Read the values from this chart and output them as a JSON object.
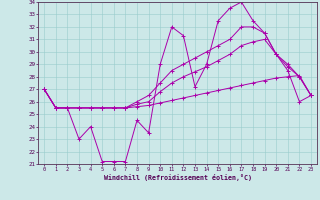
{
  "xlabel": "Windchill (Refroidissement éolien,°C)",
  "xlim": [
    -0.5,
    23.5
  ],
  "ylim": [
    21,
    34
  ],
  "yticks": [
    21,
    22,
    23,
    24,
    25,
    26,
    27,
    28,
    29,
    30,
    31,
    32,
    33,
    34
  ],
  "xticks": [
    0,
    1,
    2,
    3,
    4,
    5,
    6,
    7,
    8,
    9,
    10,
    11,
    12,
    13,
    14,
    15,
    16,
    17,
    18,
    19,
    20,
    21,
    22,
    23
  ],
  "background_color": "#cce8e8",
  "line_color": "#aa00aa",
  "grid_color": "#99cccc",
  "lines": [
    {
      "x": [
        0,
        1,
        2,
        3,
        4,
        5,
        6,
        7,
        8,
        9,
        10,
        11,
        12,
        13,
        14,
        15,
        16,
        17,
        18,
        19,
        20,
        21,
        22,
        23
      ],
      "y": [
        27.0,
        25.5,
        25.5,
        23.0,
        24.0,
        21.2,
        21.2,
        21.2,
        24.5,
        23.5,
        29.0,
        32.0,
        31.3,
        27.2,
        29.0,
        32.5,
        33.5,
        34.0,
        32.5,
        31.5,
        29.8,
        28.5,
        26.0,
        26.5
      ]
    },
    {
      "x": [
        0,
        1,
        2,
        3,
        4,
        5,
        6,
        7,
        8,
        9,
        10,
        11,
        12,
        13,
        14,
        15,
        16,
        17,
        18,
        19,
        20,
        21,
        22,
        23
      ],
      "y": [
        27.0,
        25.5,
        25.5,
        25.5,
        25.5,
        25.5,
        25.5,
        25.5,
        25.6,
        25.7,
        25.9,
        26.1,
        26.3,
        26.5,
        26.7,
        26.9,
        27.1,
        27.3,
        27.5,
        27.7,
        27.9,
        28.0,
        28.1,
        26.5
      ]
    },
    {
      "x": [
        0,
        1,
        2,
        3,
        4,
        5,
        6,
        7,
        8,
        9,
        10,
        11,
        12,
        13,
        14,
        15,
        16,
        17,
        18,
        19,
        20,
        21,
        22,
        23
      ],
      "y": [
        27.0,
        25.5,
        25.5,
        25.5,
        25.5,
        25.5,
        25.5,
        25.5,
        25.8,
        26.0,
        26.8,
        27.5,
        28.0,
        28.4,
        28.8,
        29.3,
        29.8,
        30.5,
        30.8,
        31.0,
        29.8,
        28.8,
        28.0,
        26.5
      ]
    },
    {
      "x": [
        0,
        1,
        2,
        3,
        4,
        5,
        6,
        7,
        8,
        9,
        10,
        11,
        12,
        13,
        14,
        15,
        16,
        17,
        18,
        19,
        20,
        21,
        22,
        23
      ],
      "y": [
        27.0,
        25.5,
        25.5,
        25.5,
        25.5,
        25.5,
        25.5,
        25.5,
        26.0,
        26.5,
        27.5,
        28.5,
        29.0,
        29.5,
        30.0,
        30.5,
        31.0,
        32.0,
        32.0,
        31.5,
        29.8,
        29.0,
        28.0,
        26.5
      ]
    }
  ]
}
